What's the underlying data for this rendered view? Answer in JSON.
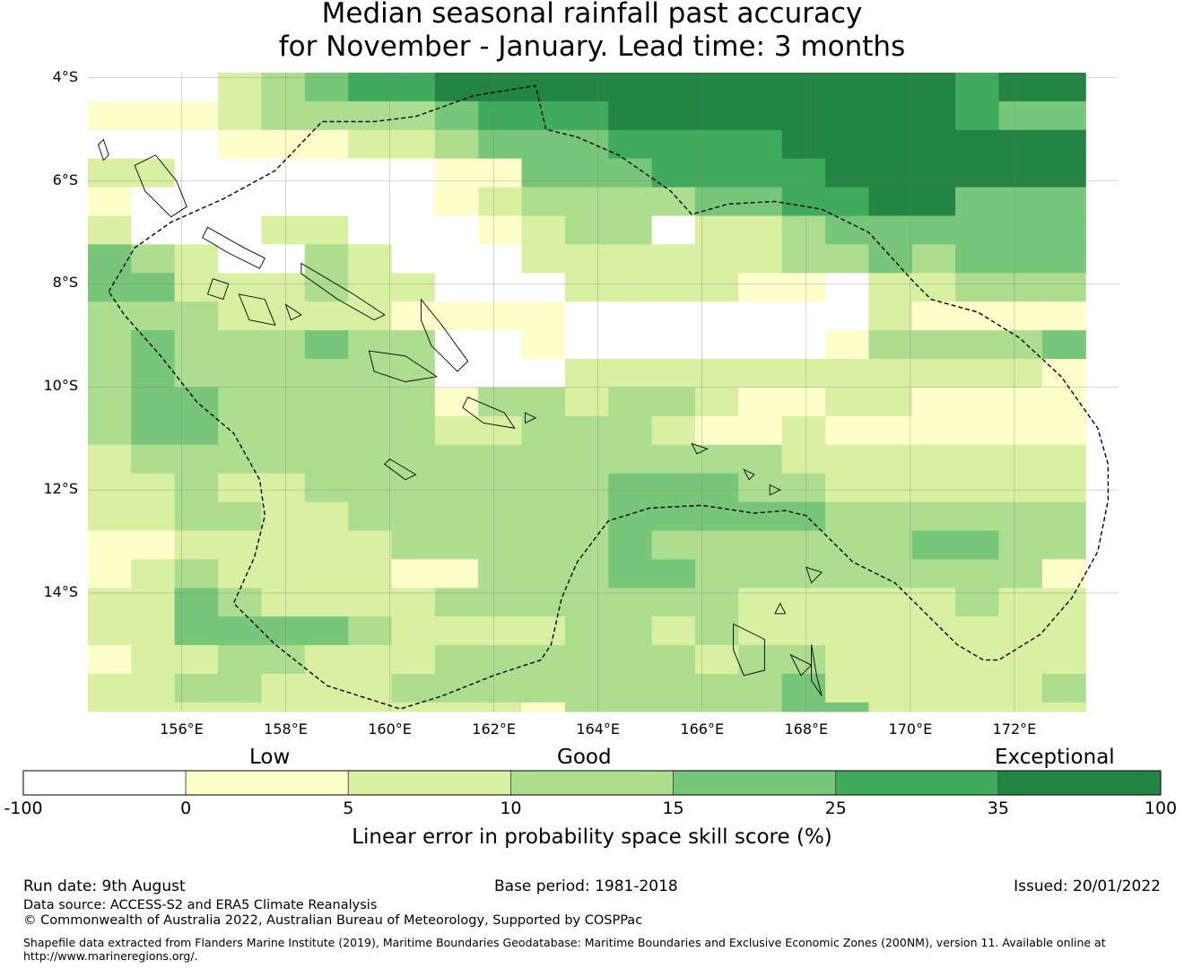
{
  "title_line1": "Median seasonal rainfall past accuracy",
  "title_line2": "for November - January. Lead time: 3 months",
  "map": {
    "lon_range": [
      154.2,
      174.0
    ],
    "lat_range": [
      -16.3,
      -3.9
    ],
    "lat_ticks": [
      {
        "value": -4,
        "label": "4°S"
      },
      {
        "value": -6,
        "label": "6°S"
      },
      {
        "value": -8,
        "label": "8°S"
      },
      {
        "value": -10,
        "label": "10°S"
      },
      {
        "value": -12,
        "label": "12°S"
      },
      {
        "value": -14,
        "label": "14°S"
      }
    ],
    "lon_ticks": [
      {
        "value": 156,
        "label": "156°E"
      },
      {
        "value": 158,
        "label": "158°E"
      },
      {
        "value": 160,
        "label": "160°E"
      },
      {
        "value": 162,
        "label": "162°E"
      },
      {
        "value": 164,
        "label": "164°E"
      },
      {
        "value": 166,
        "label": "166°E"
      },
      {
        "value": 168,
        "label": "168°E"
      },
      {
        "value": 170,
        "label": "170°E"
      },
      {
        "value": 172,
        "label": "172°E"
      }
    ],
    "grid": {
      "lon0": 154.2,
      "lat0": -3.9,
      "dlon": 0.8333,
      "dlat": 0.5556,
      "note_rows": "north to south; class index 0:<0, 1:0-5, 2:5-10, 3:10-15, 4:15-25, 5:25-35, 6:>35",
      "rows": [
        "00023455666666666666566",
        "11123333455566666666544",
        "00011122344455556666666",
        "22000000114445555666666",
        "10000000123333445566444",
        "20002200012330223444444",
        "43200320002222223343444",
        "44222322000222211022333",
        "33322221111000000021111",
        "34333433001000000133334",
        "34333333000222222222221",
        "34433333133233211221111",
        "34433333223332112111111",
        "23333333333333332222222",
        "22322333333344433222222",
        "22332233333344444333333",
        "11222223333343333334433",
        "12322221133344333333331",
        "22432222333333322222322",
        "22444432222332322222222",
        "12233222333333233222222",
        "22332223333333334222223",
        "22222222221333334422222",
        "22222222222333333322234",
        "13322332223333222222222",
        "12223222233333222222222",
        "12222222233333222222222"
      ],
      "colors": [
        "#ffffff",
        "#ffffcc",
        "#d9f0a3",
        "#addd8e",
        "#78c679",
        "#41ab5d",
        "#238443"
      ]
    },
    "eez_boundary": [
      [
        154.6,
        -8.15
      ],
      [
        155.1,
        -7.3
      ],
      [
        155.8,
        -6.8
      ],
      [
        156.8,
        -6.35
      ],
      [
        157.8,
        -5.8
      ],
      [
        158.7,
        -4.85
      ],
      [
        159.7,
        -4.85
      ],
      [
        160.5,
        -4.75
      ],
      [
        161.6,
        -4.35
      ],
      [
        162.8,
        -4.15
      ],
      [
        163.0,
        -5.0
      ],
      [
        163.6,
        -5.15
      ],
      [
        164.4,
        -5.5
      ],
      [
        165.4,
        -6.2
      ],
      [
        165.8,
        -6.65
      ],
      [
        166.5,
        -6.45
      ],
      [
        167.4,
        -6.4
      ],
      [
        168.3,
        -6.55
      ],
      [
        169.2,
        -7.0
      ],
      [
        170.1,
        -8.0
      ],
      [
        170.4,
        -8.3
      ],
      [
        171.3,
        -8.55
      ],
      [
        172.1,
        -9.05
      ],
      [
        172.9,
        -9.8
      ],
      [
        173.6,
        -10.8
      ],
      [
        173.8,
        -11.5
      ],
      [
        173.8,
        -12.2
      ],
      [
        173.6,
        -13.2
      ],
      [
        173.1,
        -14.1
      ],
      [
        172.5,
        -14.8
      ],
      [
        171.7,
        -15.3
      ],
      [
        171.4,
        -15.3
      ],
      [
        170.9,
        -15.0
      ],
      [
        170.7,
        -14.8
      ],
      [
        170.0,
        -14.1
      ],
      [
        169.7,
        -13.8
      ],
      [
        168.9,
        -13.4
      ],
      [
        168.0,
        -12.5
      ],
      [
        167.6,
        -12.4
      ],
      [
        167.0,
        -12.45
      ],
      [
        166.0,
        -12.3
      ],
      [
        165.0,
        -12.35
      ],
      [
        164.2,
        -12.6
      ],
      [
        163.6,
        -13.4
      ],
      [
        163.3,
        -14.1
      ],
      [
        163.1,
        -15.0
      ],
      [
        162.9,
        -15.3
      ],
      [
        162.0,
        -15.6
      ],
      [
        161.0,
        -16.0
      ],
      [
        160.2,
        -16.25
      ],
      [
        158.8,
        -15.8
      ],
      [
        157.8,
        -15.0
      ],
      [
        157.0,
        -14.2
      ],
      [
        157.4,
        -13.3
      ],
      [
        157.6,
        -12.5
      ],
      [
        157.5,
        -11.8
      ],
      [
        157.0,
        -10.9
      ],
      [
        156.3,
        -10.3
      ],
      [
        155.6,
        -9.4
      ],
      [
        154.9,
        -8.6
      ],
      [
        154.6,
        -8.15
      ]
    ]
  },
  "legend": {
    "categories": [
      "Low",
      "Good",
      "Exceptional"
    ],
    "ticks": [
      "-100",
      "0",
      "5",
      "10",
      "15",
      "25",
      "35",
      "100"
    ],
    "colors": [
      "#ffffff",
      "#ffffcc",
      "#d9f0a3",
      "#addd8e",
      "#78c679",
      "#41ab5d",
      "#238443"
    ],
    "label": "Linear error in probability space skill score (%)"
  },
  "footer": {
    "run_date": "Run date: 9th August",
    "base_period": "Base period: 1981-2018",
    "issued": "Issued: 20/01/2022",
    "data_source": "Data source: ACCESS-S2 and ERA5 Climate Reanalysis",
    "copyright": "© Commonwealth of Australia 2022, Australian Bureau of Meteorology, Supported by COSPPac",
    "shapefile_line1": "Shapefile data extracted from Flanders Marine Institute (2019), Maritime Boundaries Geodatabase: Maritime Boundaries and Exclusive Economic Zones (200NM), version 11. Available online at",
    "shapefile_line2": "http://www.marineregions.org/."
  }
}
